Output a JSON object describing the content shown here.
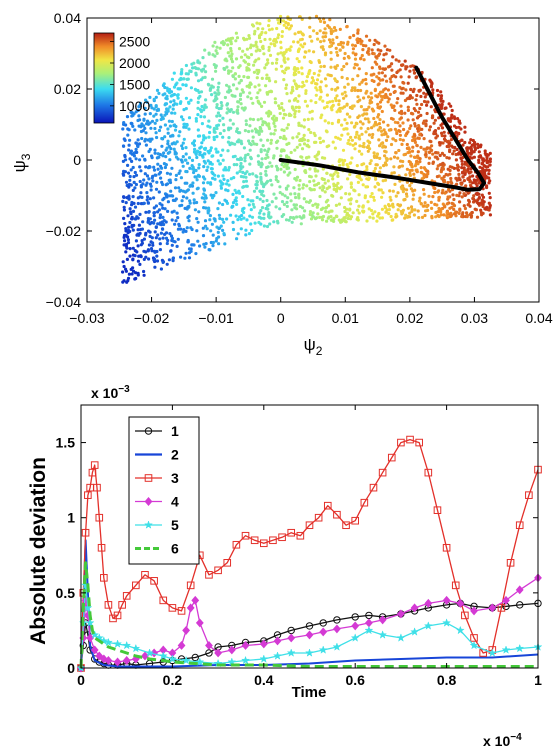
{
  "chart_data": [
    {
      "type": "scatter",
      "xlabel": "ψ",
      "xlabel_sub": "2",
      "ylabel": "ψ",
      "ylabel_sub": "3",
      "xlim": [
        -0.03,
        0.04
      ],
      "ylim": [
        -0.04,
        0.04
      ],
      "xticks": [
        -0.03,
        -0.02,
        -0.01,
        0,
        0.01,
        0.02,
        0.03,
        0.04
      ],
      "xtick_labels": [
        "−0.03",
        "−0.02",
        "−0.01",
        "0",
        "0.01",
        "0.02",
        "0.03",
        "0.04"
      ],
      "yticks": [
        -0.04,
        -0.02,
        0,
        0.02,
        0.04
      ],
      "ytick_labels": [
        "−0.04",
        "−0.02",
        "0",
        "0.02",
        "0.04"
      ],
      "grid": false,
      "colorbar": {
        "range": [
          600,
          2700
        ],
        "ticks": [
          1000,
          1500,
          2000,
          2500
        ],
        "tick_labels": [
          "1000",
          "1500",
          "2000",
          "2500"
        ],
        "placement": "top-left"
      },
      "point_cloud": {
        "color_value_range": [
          700,
          2650
        ],
        "approx_points": 3200
      },
      "curve": {
        "color": "#000000",
        "points": [
          [
            0.0,
            0.0
          ],
          [
            0.006,
            -0.0015
          ],
          [
            0.012,
            -0.0035
          ],
          [
            0.018,
            -0.005
          ],
          [
            0.023,
            -0.0065
          ],
          [
            0.027,
            -0.0077
          ],
          [
            0.029,
            -0.0084
          ],
          [
            0.0308,
            -0.0082
          ],
          [
            0.0315,
            -0.0065
          ],
          [
            0.0305,
            -0.0035
          ],
          [
            0.029,
            0.0
          ],
          [
            0.027,
            0.006
          ],
          [
            0.025,
            0.012
          ],
          [
            0.023,
            0.019
          ],
          [
            0.021,
            0.026
          ]
        ]
      }
    },
    {
      "type": "line",
      "xlabel": "Time",
      "ylabel": "Absolute deviation",
      "x_multiplier": "x 10",
      "x_multiplier_exp": "−4",
      "y_multiplier": "x 10",
      "y_multiplier_exp": "−3",
      "xlim": [
        0,
        1
      ],
      "ylim": [
        0,
        1.75
      ],
      "xticks": [
        0,
        0.2,
        0.4,
        0.6,
        0.8,
        1
      ],
      "xtick_labels": [
        "0",
        "0.2",
        "0.4",
        "0.6",
        "0.8",
        "1"
      ],
      "yticks": [
        0,
        0.5,
        1,
        1.5
      ],
      "ytick_labels": [
        "0",
        "0.5",
        "1",
        "1.5"
      ],
      "grid": false,
      "legend": {
        "placement": "top-left"
      },
      "series": [
        {
          "name": "1",
          "color": "#111111",
          "marker": "circle",
          "dash": "",
          "x": [
            0.0,
            0.005,
            0.01,
            0.015,
            0.02,
            0.03,
            0.04,
            0.05,
            0.06,
            0.08,
            0.1,
            0.12,
            0.15,
            0.18,
            0.2,
            0.22,
            0.25,
            0.28,
            0.3,
            0.33,
            0.36,
            0.4,
            0.43,
            0.46,
            0.5,
            0.53,
            0.56,
            0.6,
            0.63,
            0.66,
            0.7,
            0.73,
            0.76,
            0.8,
            0.83,
            0.86,
            0.9,
            0.93,
            0.96,
            1.0
          ],
          "y": [
            0.0,
            0.15,
            0.3,
            0.22,
            0.12,
            0.06,
            0.04,
            0.03,
            0.02,
            0.02,
            0.03,
            0.02,
            0.03,
            0.04,
            0.05,
            0.06,
            0.07,
            0.1,
            0.14,
            0.15,
            0.17,
            0.18,
            0.22,
            0.25,
            0.28,
            0.3,
            0.32,
            0.34,
            0.35,
            0.34,
            0.36,
            0.38,
            0.4,
            0.42,
            0.43,
            0.41,
            0.4,
            0.41,
            0.42,
            0.43
          ]
        },
        {
          "name": "2",
          "color": "#1745d8",
          "marker": "",
          "dash": "",
          "x": [
            0.0,
            0.005,
            0.01,
            0.015,
            0.02,
            0.03,
            0.05,
            0.08,
            0.1,
            0.15,
            0.2,
            0.3,
            0.4,
            0.5,
            0.6,
            0.7,
            0.8,
            0.9,
            1.0
          ],
          "y": [
            0.0,
            0.4,
            0.85,
            0.5,
            0.15,
            0.05,
            0.02,
            0.01,
            0.01,
            0.01,
            0.01,
            0.02,
            0.02,
            0.03,
            0.05,
            0.06,
            0.07,
            0.07,
            0.09
          ]
        },
        {
          "name": "3",
          "color": "#e3302a",
          "marker": "square",
          "dash": "",
          "x": [
            0.0,
            0.005,
            0.01,
            0.015,
            0.02,
            0.025,
            0.03,
            0.035,
            0.04,
            0.045,
            0.05,
            0.06,
            0.07,
            0.08,
            0.09,
            0.1,
            0.12,
            0.14,
            0.16,
            0.18,
            0.2,
            0.22,
            0.24,
            0.26,
            0.28,
            0.3,
            0.32,
            0.34,
            0.36,
            0.38,
            0.4,
            0.42,
            0.44,
            0.46,
            0.48,
            0.5,
            0.52,
            0.54,
            0.56,
            0.58,
            0.6,
            0.62,
            0.64,
            0.66,
            0.68,
            0.7,
            0.72,
            0.74,
            0.76,
            0.78,
            0.8,
            0.82,
            0.84,
            0.86,
            0.88,
            0.9,
            0.92,
            0.94,
            0.96,
            0.98,
            1.0
          ],
          "y": [
            0.0,
            0.5,
            0.9,
            1.15,
            1.2,
            1.3,
            1.35,
            1.2,
            1.0,
            0.8,
            0.6,
            0.42,
            0.33,
            0.35,
            0.42,
            0.48,
            0.55,
            0.62,
            0.58,
            0.45,
            0.4,
            0.38,
            0.55,
            0.75,
            0.62,
            0.65,
            0.7,
            0.82,
            0.88,
            0.85,
            0.83,
            0.85,
            0.87,
            0.9,
            0.88,
            0.95,
            1.0,
            1.08,
            1.02,
            0.95,
            0.98,
            1.1,
            1.2,
            1.3,
            1.4,
            1.5,
            1.52,
            1.5,
            1.3,
            1.05,
            0.8,
            0.55,
            0.35,
            0.2,
            0.1,
            0.12,
            0.4,
            0.7,
            0.95,
            1.15,
            1.32
          ]
        },
        {
          "name": "4",
          "color": "#d43ad4",
          "marker": "diamond",
          "dash": "",
          "x": [
            0.0,
            0.005,
            0.01,
            0.015,
            0.02,
            0.03,
            0.04,
            0.05,
            0.06,
            0.08,
            0.1,
            0.12,
            0.14,
            0.16,
            0.18,
            0.2,
            0.22,
            0.23,
            0.24,
            0.25,
            0.26,
            0.28,
            0.3,
            0.33,
            0.36,
            0.4,
            0.43,
            0.46,
            0.5,
            0.53,
            0.56,
            0.6,
            0.63,
            0.66,
            0.7,
            0.73,
            0.76,
            0.8,
            0.83,
            0.86,
            0.9,
            0.93,
            0.96,
            1.0
          ],
          "y": [
            0.0,
            0.2,
            0.45,
            0.35,
            0.2,
            0.12,
            0.08,
            0.06,
            0.05,
            0.04,
            0.05,
            0.06,
            0.08,
            0.1,
            0.12,
            0.1,
            0.15,
            0.25,
            0.4,
            0.45,
            0.3,
            0.15,
            0.1,
            0.12,
            0.15,
            0.16,
            0.18,
            0.2,
            0.22,
            0.24,
            0.26,
            0.28,
            0.3,
            0.32,
            0.36,
            0.4,
            0.43,
            0.45,
            0.43,
            0.38,
            0.4,
            0.45,
            0.52,
            0.6
          ]
        },
        {
          "name": "5",
          "color": "#3fe0e8",
          "marker": "star",
          "dash": "",
          "x": [
            0.0,
            0.005,
            0.01,
            0.015,
            0.02,
            0.03,
            0.04,
            0.05,
            0.06,
            0.08,
            0.1,
            0.12,
            0.15,
            0.18,
            0.2,
            0.23,
            0.26,
            0.3,
            0.33,
            0.36,
            0.4,
            0.43,
            0.46,
            0.5,
            0.53,
            0.56,
            0.6,
            0.63,
            0.66,
            0.7,
            0.73,
            0.76,
            0.8,
            0.83,
            0.86,
            0.9,
            0.93,
            0.96,
            1.0
          ],
          "y": [
            0.0,
            0.3,
            0.55,
            0.4,
            0.3,
            0.22,
            0.2,
            0.18,
            0.17,
            0.16,
            0.15,
            0.13,
            0.1,
            0.08,
            0.06,
            0.05,
            0.04,
            0.03,
            0.04,
            0.05,
            0.06,
            0.08,
            0.1,
            0.1,
            0.12,
            0.14,
            0.2,
            0.25,
            0.22,
            0.2,
            0.24,
            0.28,
            0.3,
            0.25,
            0.15,
            0.1,
            0.12,
            0.13,
            0.14
          ]
        },
        {
          "name": "6",
          "color": "#44c93a",
          "marker": "",
          "dash": "9,5",
          "x": [
            0.0,
            0.005,
            0.01,
            0.015,
            0.02,
            0.025,
            0.03,
            0.04,
            0.05,
            0.06,
            0.08,
            0.1,
            0.12,
            0.15,
            0.18,
            0.2,
            0.25,
            0.3,
            0.4,
            0.5,
            0.6,
            0.7,
            0.8,
            0.9,
            1.0
          ],
          "y": [
            0.0,
            0.4,
            0.7,
            0.55,
            0.35,
            0.25,
            0.2,
            0.18,
            0.16,
            0.14,
            0.12,
            0.1,
            0.08,
            0.06,
            0.05,
            0.04,
            0.03,
            0.02,
            0.02,
            0.01,
            0.01,
            0.01,
            0.01,
            0.01,
            0.01
          ]
        }
      ]
    }
  ]
}
